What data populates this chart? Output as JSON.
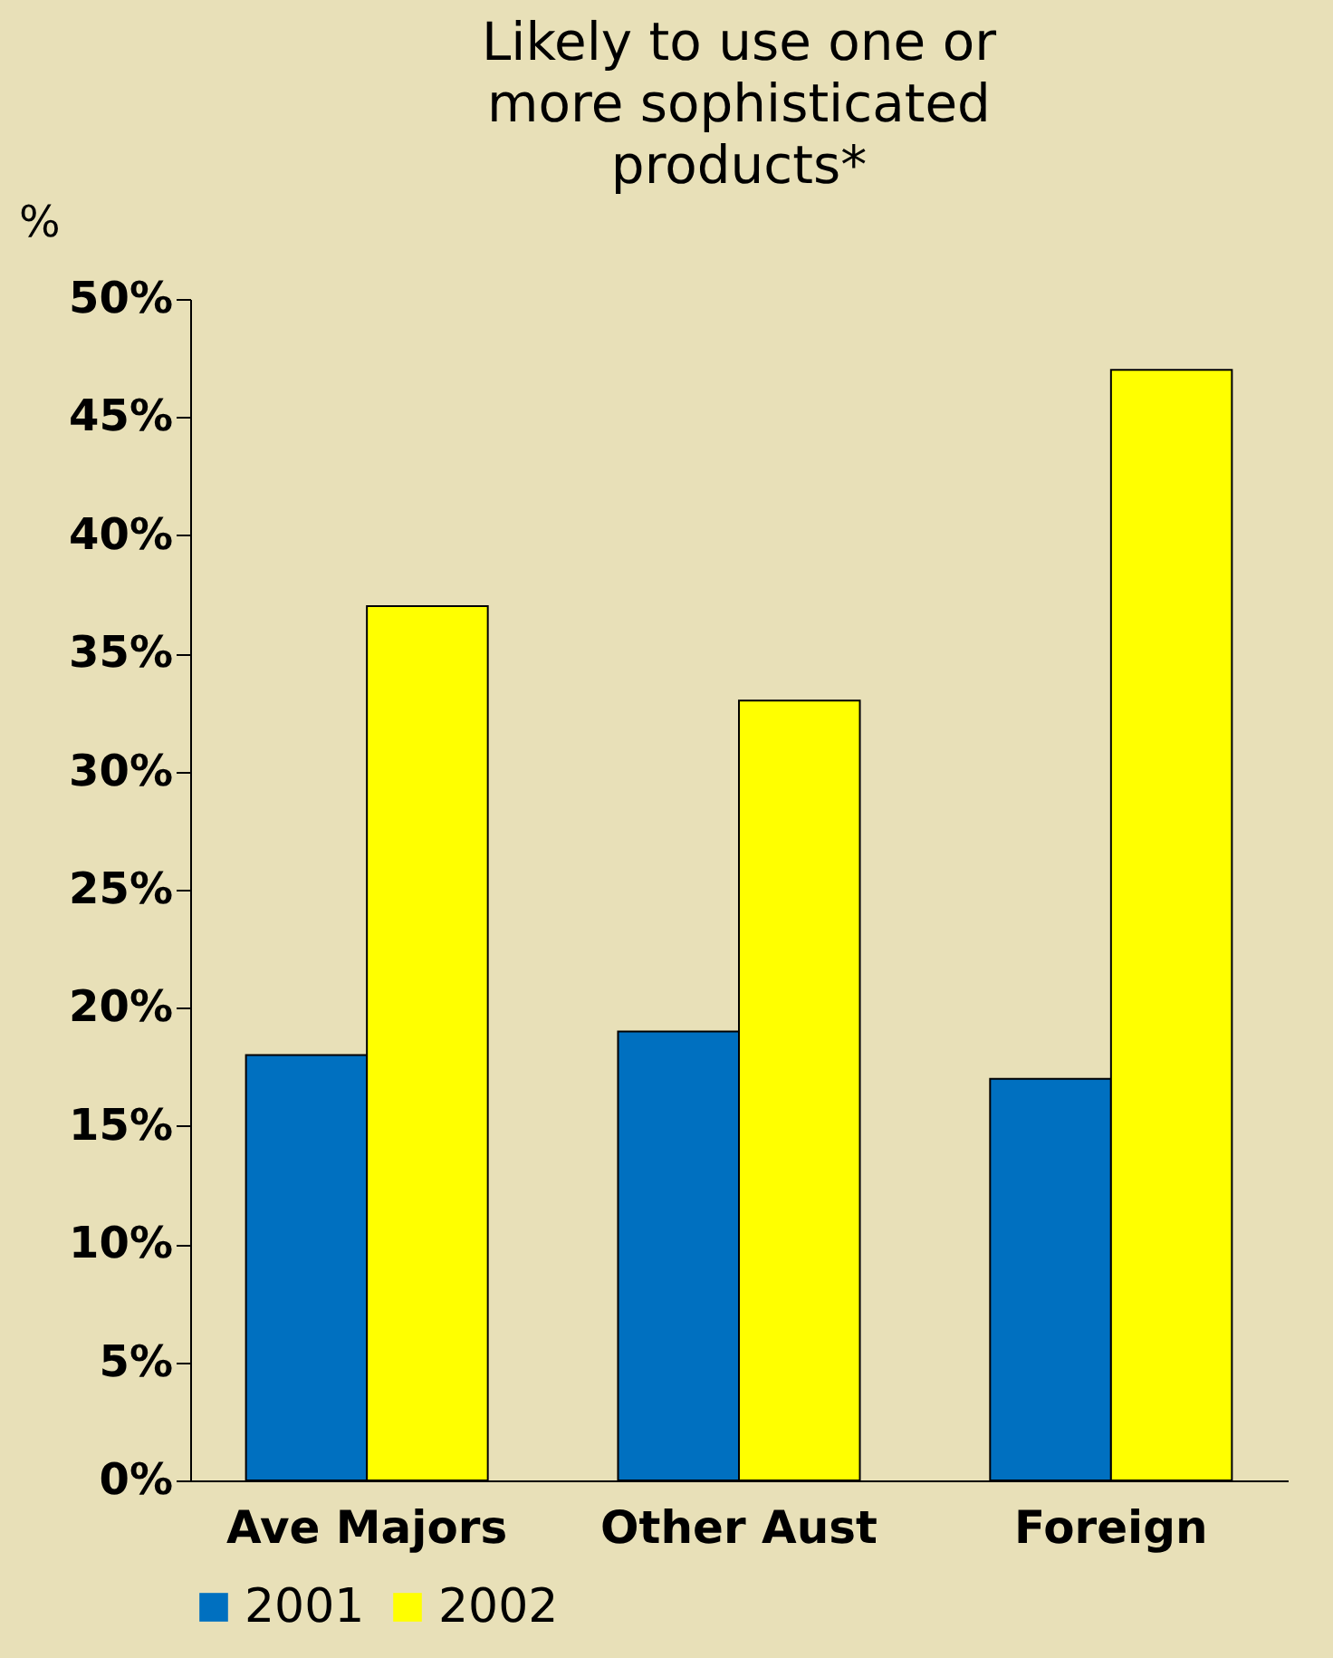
{
  "chart_data": {
    "type": "bar",
    "title": "Likely to use one or more sophisticated products*",
    "ylabel": "%",
    "categories": [
      "Ave Majors",
      "Other Aust",
      "Foreign"
    ],
    "series": [
      {
        "name": "2001",
        "color": "#0070c0",
        "values": [
          18,
          19,
          17
        ]
      },
      {
        "name": "2002",
        "color": "#ffff00",
        "values": [
          37,
          33,
          47
        ]
      }
    ],
    "ylim": [
      0,
      50
    ],
    "yticks": [
      {
        "value": 0,
        "label": "0%"
      },
      {
        "value": 5,
        "label": "5%"
      },
      {
        "value": 10,
        "label": "10%"
      },
      {
        "value": 15,
        "label": "15%"
      },
      {
        "value": 20,
        "label": "20%"
      },
      {
        "value": 25,
        "label": "25%"
      },
      {
        "value": 30,
        "label": "30%"
      },
      {
        "value": 35,
        "label": "35%"
      },
      {
        "value": 40,
        "label": "40%"
      },
      {
        "value": 45,
        "label": "45%"
      },
      {
        "value": 50,
        "label": "50%"
      }
    ],
    "grid": false,
    "legend": "bottom"
  }
}
